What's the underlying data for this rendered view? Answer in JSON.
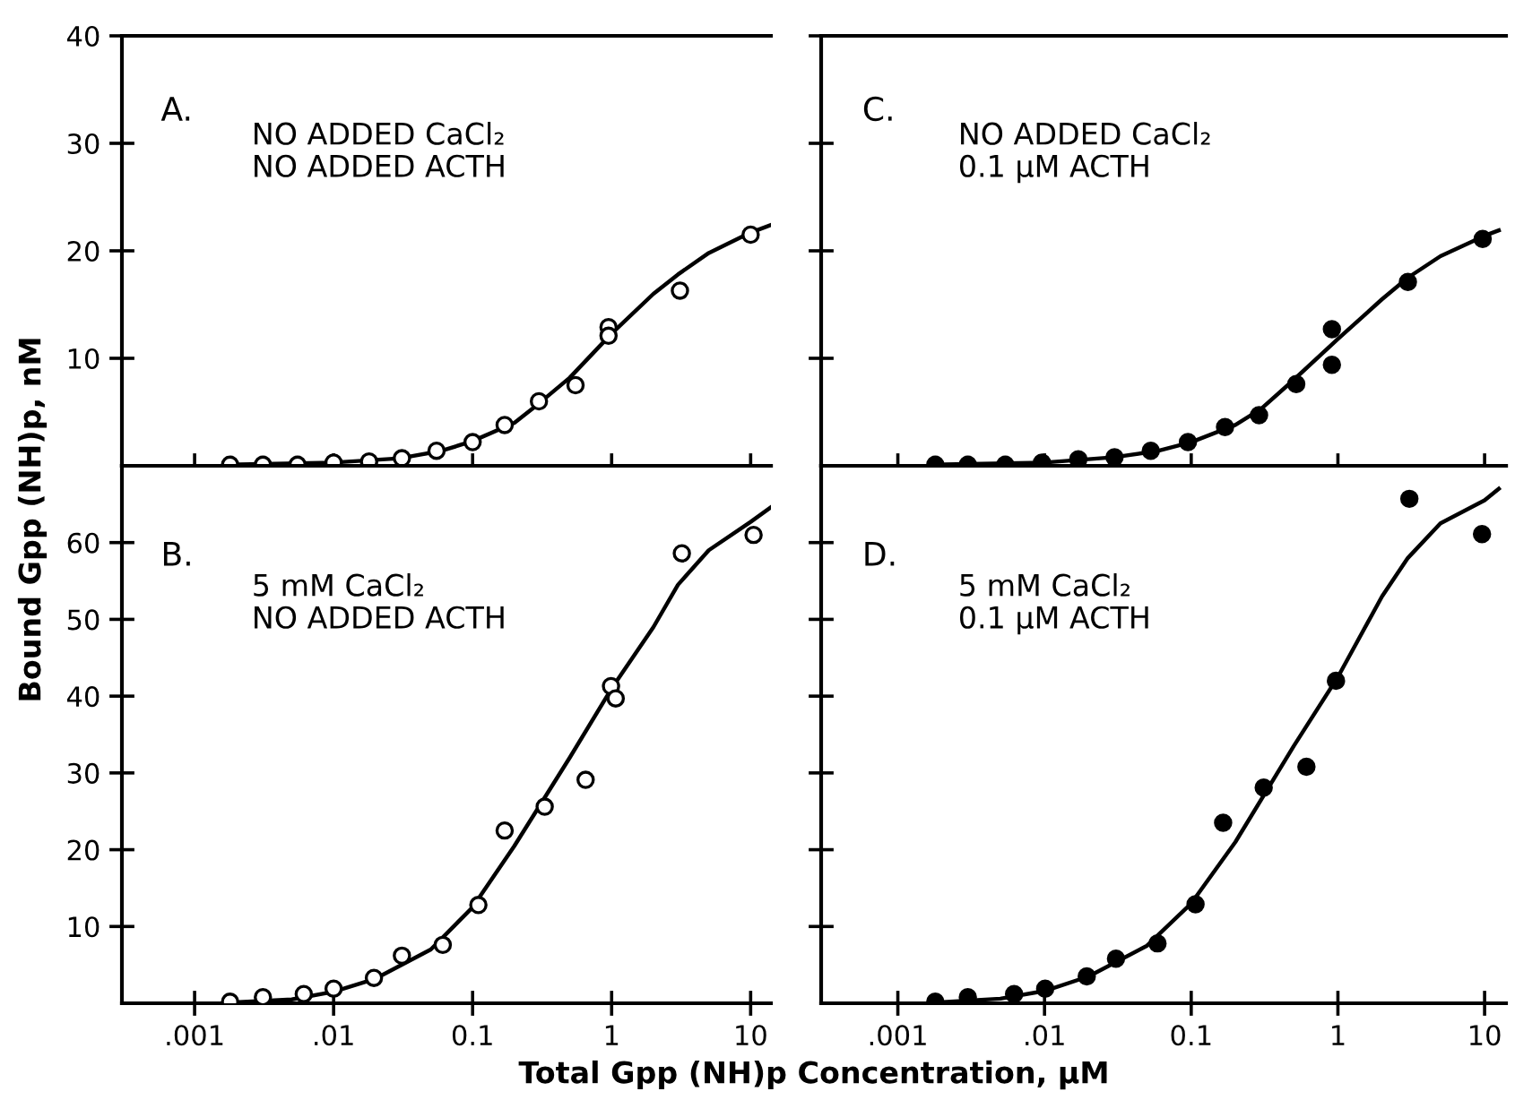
{
  "chart_data": [
    {
      "type": "scatter",
      "annotations": [
        "A.",
        "NO ADDED CaCl₂\nNO ADDED ACTH"
      ],
      "log": "x",
      "xlim": [
        0.0003,
        14
      ],
      "ylim": [
        0,
        40
      ],
      "xticks": [
        0.001,
        0.01,
        0.1,
        1,
        10
      ],
      "yticks": [
        10,
        20,
        30,
        40
      ],
      "tick_labels": "y",
      "grid": false,
      "legend": false,
      "series": [
        {
          "marker": "circle",
          "color": "#ffffff",
          "x": [
            0.0018,
            0.0031,
            0.0055,
            0.01,
            0.018,
            0.031,
            0.055,
            0.1,
            0.17,
            0.3,
            0.55,
            0.95,
            0.95,
            3.1,
            10
          ],
          "values": [
            0.1,
            0.1,
            0.1,
            0.3,
            0.4,
            0.7,
            1.4,
            2.2,
            3.8,
            6.0,
            7.5,
            12.9,
            12.1,
            16.3,
            21.5
          ]
        },
        {
          "type": "line",
          "marker": "none",
          "color": "#000000",
          "x": [
            0.0017,
            0.01,
            0.03,
            0.06,
            0.1,
            0.2,
            0.3,
            0.5,
            1,
            2,
            3,
            5,
            10,
            14
          ],
          "values": [
            0.1,
            0.3,
            0.7,
            1.4,
            2.3,
            4.0,
            5.8,
            8.2,
            12.3,
            16,
            17.8,
            19.8,
            21.7,
            22.4
          ]
        }
      ]
    },
    {
      "type": "scatter",
      "annotations": [
        "C.",
        "NO ADDED CaCl₂\n0.1 µM ACTH"
      ],
      "log": "x",
      "xlim": [
        0.0003,
        14
      ],
      "ylim": [
        0,
        40
      ],
      "xticks": [
        0.001,
        0.01,
        0.1,
        1,
        10
      ],
      "yticks": [
        10,
        20,
        30,
        40
      ],
      "tick_labels": false,
      "grid": false,
      "legend": false,
      "series": [
        {
          "marker": "circle",
          "color": "#000000",
          "x": [
            0.0018,
            0.003,
            0.0054,
            0.0096,
            0.017,
            0.03,
            0.053,
            0.095,
            0.17,
            0.29,
            0.52,
            0.91,
            0.91,
            3.0,
            9.7
          ],
          "values": [
            0.1,
            0.1,
            0.1,
            0.3,
            0.6,
            0.8,
            1.4,
            2.2,
            3.6,
            4.7,
            7.6,
            12.7,
            9.4,
            17.1,
            21.1
          ]
        },
        {
          "type": "line",
          "marker": "none",
          "color": "#000000",
          "x": [
            0.0017,
            0.01,
            0.03,
            0.06,
            0.1,
            0.2,
            0.3,
            0.5,
            1,
            2,
            3,
            5,
            10,
            12.5
          ],
          "values": [
            0.1,
            0.3,
            0.8,
            1.4,
            2.2,
            3.8,
            5.3,
            8,
            11.8,
            15.5,
            17.5,
            19.5,
            21.4,
            21.9
          ]
        }
      ]
    },
    {
      "type": "scatter",
      "xlabel": "Total Gpp (NH)p Concentration, µM",
      "ylabel": "Bound Gpp (NH)p, nM",
      "annotations": [
        "B.",
        "5 mM CaCl₂\nNO ADDED ACTH"
      ],
      "log": "x",
      "xlim": [
        0.0003,
        14
      ],
      "ylim": [
        0,
        70
      ],
      "xticks": [
        {
          "value": 0.001,
          "label": ".001"
        },
        {
          "value": 0.01,
          "label": ".01"
        },
        {
          "value": 0.1,
          "label": "0.1"
        },
        1,
        10
      ],
      "yticks": [
        10,
        20,
        30,
        40,
        50,
        60
      ],
      "grid": false,
      "legend": false,
      "series": [
        {
          "marker": "circle",
          "color": "#ffffff",
          "x": [
            0.0018,
            0.0031,
            0.0061,
            0.01,
            0.0195,
            0.031,
            0.061,
            0.11,
            0.17,
            0.33,
            0.65,
            0.99,
            1.07,
            3.2,
            10.5
          ],
          "values": [
            0.2,
            0.8,
            1.2,
            1.9,
            3.3,
            6.2,
            7.6,
            12.8,
            22.5,
            25.6,
            29.1,
            41.3,
            39.7,
            58.6,
            61
          ]
        },
        {
          "type": "line",
          "marker": "none",
          "color": "#000000",
          "x": [
            0.0018,
            0.005,
            0.01,
            0.02,
            0.05,
            0.1,
            0.2,
            0.5,
            1,
            2,
            3,
            5,
            10,
            14
          ],
          "values": [
            0.1,
            0.5,
            1.5,
            3.2,
            7,
            12.5,
            20.5,
            32,
            41,
            49,
            54.5,
            59,
            62.7,
            64.6
          ]
        }
      ]
    },
    {
      "type": "scatter",
      "annotations": [
        "D.",
        "5 mM CaCl₂\n0.1 µM ACTH"
      ],
      "log": "x",
      "xlim": [
        0.0003,
        14
      ],
      "ylim": [
        0,
        70
      ],
      "xticks": [
        {
          "value": 0.001,
          "label": ".001"
        },
        {
          "value": 0.01,
          "label": ".01"
        },
        {
          "value": 0.1,
          "label": "0.1"
        },
        1,
        10
      ],
      "yticks": [
        10,
        20,
        30,
        40,
        50,
        60
      ],
      "tick_labels": "x",
      "grid": false,
      "legend": false,
      "series": [
        {
          "marker": "circle",
          "color": "#000000",
          "x": [
            0.0018,
            0.003,
            0.0062,
            0.0101,
            0.0194,
            0.0307,
            0.0589,
            0.107,
            0.165,
            0.312,
            0.61,
            0.97,
            3.07,
            9.6
          ],
          "values": [
            0.2,
            0.8,
            1.2,
            1.9,
            3.5,
            5.8,
            7.8,
            12.9,
            23.5,
            28.1,
            30.8,
            42,
            65.7,
            61.1
          ]
        },
        {
          "type": "line",
          "marker": "none",
          "color": "#000000",
          "x": [
            0.0018,
            0.005,
            0.01,
            0.02,
            0.05,
            0.1,
            0.2,
            0.5,
            1,
            2,
            3,
            5,
            10,
            12.5
          ],
          "values": [
            0.1,
            0.6,
            1.6,
            3.5,
            7.5,
            13,
            21,
            33.5,
            42.5,
            53,
            58,
            62.5,
            65.5,
            67
          ]
        }
      ]
    }
  ]
}
